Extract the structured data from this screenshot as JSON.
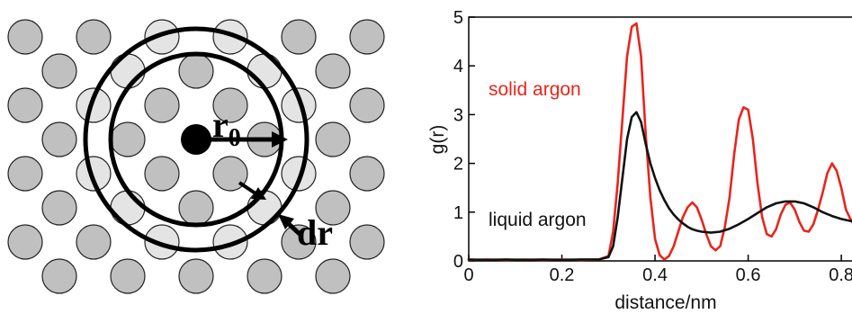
{
  "left_diagram": {
    "label_r": "r",
    "label_r_sub": "0",
    "label_dr": "dr",
    "colors": {
      "atom_fill": "#c0c0c0",
      "atom_in_shell_fill": "#e4e4e4",
      "atom_stroke": "#222222",
      "central_atom": "#000000"
    }
  },
  "chart_data": {
    "type": "line",
    "xlabel": "distance/nm",
    "ylabel": "g(r)",
    "xlim": [
      0,
      0.85
    ],
    "ylim": [
      0,
      5
    ],
    "xticks": [
      0,
      0.2,
      0.4,
      0.6,
      0.8
    ],
    "xtick_labels": [
      "0",
      "0.2",
      "0.4",
      "0.6",
      "0.8"
    ],
    "yticks": [
      0,
      1,
      2,
      3,
      4,
      5
    ],
    "ytick_labels": [
      "0",
      "1",
      "2",
      "3",
      "4",
      "5"
    ],
    "grid": false,
    "series": [
      {
        "name": "solid argon",
        "color": "#e8251c",
        "x": [
          0,
          0.04,
          0.08,
          0.12,
          0.16,
          0.2,
          0.24,
          0.28,
          0.3,
          0.31,
          0.32,
          0.33,
          0.34,
          0.35,
          0.36,
          0.37,
          0.38,
          0.39,
          0.4,
          0.41,
          0.42,
          0.43,
          0.44,
          0.45,
          0.46,
          0.47,
          0.48,
          0.49,
          0.5,
          0.51,
          0.52,
          0.53,
          0.54,
          0.55,
          0.56,
          0.57,
          0.58,
          0.59,
          0.6,
          0.61,
          0.62,
          0.63,
          0.64,
          0.65,
          0.66,
          0.67,
          0.68,
          0.69,
          0.7,
          0.71,
          0.72,
          0.73,
          0.74,
          0.75,
          0.76,
          0.77,
          0.78,
          0.79,
          0.8,
          0.81,
          0.82,
          0.83,
          0.84,
          0.85
        ],
        "y": [
          0.02,
          0.03,
          0.02,
          0.03,
          0.02,
          0.03,
          0.02,
          0.03,
          0.1,
          0.6,
          1.6,
          2.9,
          4.2,
          4.8,
          4.87,
          4.2,
          2.6,
          1.3,
          0.45,
          0.12,
          0.03,
          0.1,
          0.3,
          0.6,
          0.9,
          1.1,
          1.2,
          1.1,
          0.85,
          0.55,
          0.3,
          0.22,
          0.3,
          0.7,
          1.3,
          2.2,
          2.9,
          3.15,
          3.1,
          2.5,
          1.6,
          0.9,
          0.55,
          0.5,
          0.65,
          0.95,
          1.15,
          1.2,
          1.05,
          0.8,
          0.62,
          0.6,
          0.75,
          1.05,
          1.4,
          1.8,
          2.0,
          1.85,
          1.5,
          1.05,
          0.85,
          0.7,
          0.75,
          0.8
        ]
      },
      {
        "name": "liquid argon",
        "color": "#111111",
        "x": [
          0,
          0.04,
          0.08,
          0.12,
          0.16,
          0.2,
          0.24,
          0.28,
          0.3,
          0.31,
          0.32,
          0.33,
          0.34,
          0.35,
          0.36,
          0.37,
          0.38,
          0.39,
          0.4,
          0.41,
          0.42,
          0.43,
          0.44,
          0.45,
          0.46,
          0.47,
          0.48,
          0.49,
          0.5,
          0.52,
          0.54,
          0.56,
          0.58,
          0.6,
          0.62,
          0.64,
          0.66,
          0.68,
          0.7,
          0.72,
          0.74,
          0.76,
          0.78,
          0.8,
          0.82,
          0.84,
          0.85
        ],
        "y": [
          0.03,
          0.02,
          0.03,
          0.02,
          0.03,
          0.02,
          0.03,
          0.03,
          0.08,
          0.3,
          0.9,
          1.7,
          2.5,
          2.95,
          3.05,
          2.85,
          2.4,
          2.0,
          1.7,
          1.45,
          1.25,
          1.08,
          0.95,
          0.85,
          0.77,
          0.7,
          0.65,
          0.62,
          0.6,
          0.58,
          0.6,
          0.66,
          0.75,
          0.86,
          0.98,
          1.1,
          1.18,
          1.22,
          1.22,
          1.18,
          1.1,
          1.0,
          0.92,
          0.86,
          0.82,
          0.8,
          0.8
        ]
      }
    ]
  }
}
